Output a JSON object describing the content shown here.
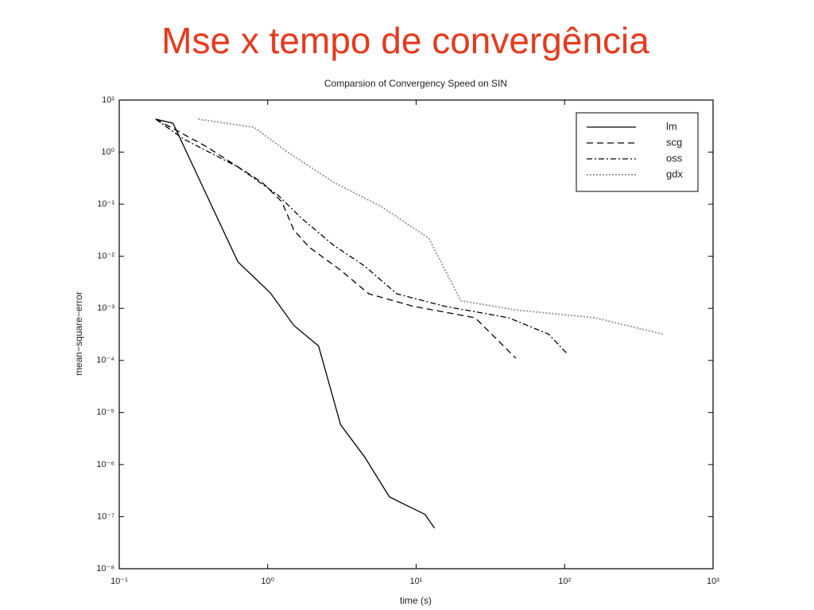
{
  "slide_title": "Mse x tempo de convergência",
  "chart_data": {
    "type": "line",
    "title": "Comparsion of Convergency Speed on SIN",
    "x_label": "time (s)",
    "y_label": "mean−square−error",
    "xscale": "log",
    "yscale": "log",
    "xlim": [
      0.1,
      1000
    ],
    "ylim": [
      1e-08,
      10
    ],
    "xticks": [
      {
        "value": 0.1,
        "label": "10⁻¹"
      },
      {
        "value": 1,
        "label": "10⁰"
      },
      {
        "value": 10,
        "label": "10¹"
      },
      {
        "value": 100,
        "label": "10²"
      },
      {
        "value": 1000,
        "label": "10³"
      }
    ],
    "yticks": [
      {
        "value": 10,
        "label": "10¹"
      },
      {
        "value": 1,
        "label": "10⁰"
      },
      {
        "value": 0.1,
        "label": "10⁻¹"
      },
      {
        "value": 0.01,
        "label": "10⁻²"
      },
      {
        "value": 0.001,
        "label": "10⁻³"
      },
      {
        "value": 0.0001,
        "label": "10⁻⁴"
      },
      {
        "value": 1e-05,
        "label": "10⁻⁵"
      },
      {
        "value": 1e-06,
        "label": "10⁻⁶"
      },
      {
        "value": 1e-07,
        "label": "10⁻⁷"
      },
      {
        "value": 1e-08,
        "label": "10⁻⁸"
      }
    ],
    "legend": "upper right",
    "series": [
      {
        "name": "lm",
        "color": "#000000",
        "style": "solid",
        "x": [
          0.176,
          0.23,
          0.63,
          1.04,
          1.5,
          2.2,
          3.1,
          4.5,
          6.6,
          8.4,
          11.5,
          13.3
        ],
        "values": [
          4.3,
          3.6,
          0.0078,
          0.002,
          0.00047,
          0.00019,
          5.8e-06,
          1.4e-06,
          2.4e-07,
          1.7e-07,
          1.1e-07,
          6e-08
        ]
      },
      {
        "name": "scg",
        "color": "#000000",
        "style": "dashed",
        "x": [
          0.176,
          0.39,
          0.92,
          1.25,
          1.5,
          1.9,
          3.1,
          4.8,
          9.5,
          25,
          47
        ],
        "values": [
          4.3,
          1.26,
          0.26,
          0.11,
          0.032,
          0.015,
          0.0054,
          0.0019,
          0.0011,
          0.00066,
          0.00011
        ]
      },
      {
        "name": "oss",
        "color": "#000000",
        "style": "dashdot",
        "x": [
          0.176,
          0.27,
          0.63,
          1.17,
          1.7,
          2.8,
          4.5,
          7.4,
          15.5,
          42,
          78,
          105
        ],
        "values": [
          4.3,
          1.8,
          0.52,
          0.15,
          0.053,
          0.016,
          0.0065,
          0.0019,
          0.0011,
          0.00066,
          0.00032,
          0.00013
        ]
      },
      {
        "name": "gdx",
        "color": "#999999",
        "style": "dotted",
        "x": [
          0.34,
          0.81,
          1.33,
          2.8,
          5.8,
          12.2,
          20,
          47,
          160,
          460
        ],
        "values": [
          4.3,
          3.0,
          1.05,
          0.26,
          0.091,
          0.022,
          0.0014,
          0.00093,
          0.00066,
          0.00032
        ]
      }
    ]
  }
}
